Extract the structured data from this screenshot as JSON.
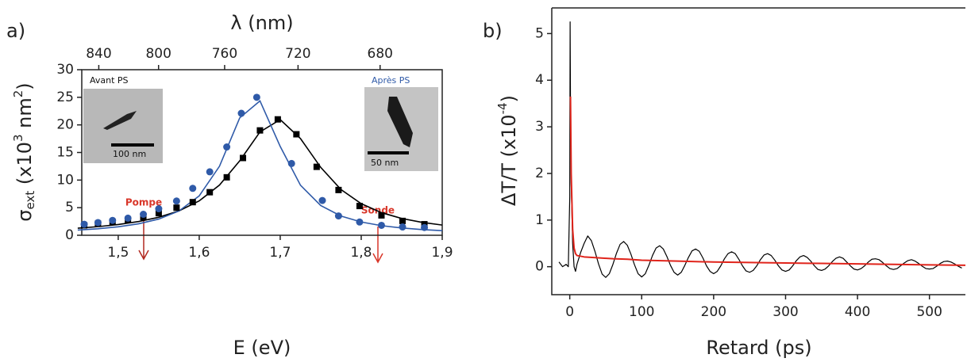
{
  "chart_data": [
    {
      "type": "scatter",
      "panel_label": "a)",
      "xlabel": "E (eV)",
      "x2label": "λ (nm)",
      "ylabel": [
        "σ",
        "ext",
        " (x10",
        "3",
        " nm",
        "2",
        ")"
      ],
      "xlim": [
        1.455,
        1.9
      ],
      "ylim": [
        0,
        30
      ],
      "xticks": [
        {
          "value": 1.5,
          "label": "1,5"
        },
        {
          "value": 1.6,
          "label": "1,6"
        },
        {
          "value": 1.7,
          "label": "1,7"
        },
        {
          "value": 1.8,
          "label": "1,8"
        },
        {
          "value": 1.9,
          "label": "1,9"
        }
      ],
      "x2ticks": [
        840,
        800,
        760,
        720,
        680
      ],
      "yticks": [
        0,
        5,
        10,
        15,
        20,
        25,
        30
      ],
      "series": [
        {
          "name": "Avant PS",
          "color": "#000000",
          "marker": "square",
          "x": [
            1.458,
            1.475,
            1.493,
            1.512,
            1.531,
            1.55,
            1.572,
            1.592,
            1.613,
            1.634,
            1.654,
            1.675,
            1.697,
            1.72,
            1.745,
            1.772,
            1.798,
            1.825,
            1.851,
            1.878
          ],
          "values": [
            1.8,
            2.1,
            2.4,
            2.8,
            3.3,
            4.0,
            5.0,
            6.0,
            7.8,
            10.5,
            14.0,
            19.0,
            21.0,
            18.3,
            12.4,
            8.2,
            5.3,
            3.6,
            2.6,
            2.0
          ]
        },
        {
          "name": "Après PS",
          "color": "#2f5aa8",
          "marker": "circle",
          "x": [
            1.458,
            1.475,
            1.493,
            1.512,
            1.531,
            1.55,
            1.572,
            1.592,
            1.613,
            1.634,
            1.652,
            1.671,
            1.714,
            1.752,
            1.772,
            1.798,
            1.825,
            1.851,
            1.878
          ],
          "values": [
            2.0,
            2.3,
            2.7,
            3.1,
            3.8,
            4.8,
            6.2,
            8.5,
            11.5,
            16.0,
            22.1,
            25.0,
            13.0,
            6.3,
            3.5,
            2.4,
            1.8,
            1.5,
            1.4
          ]
        }
      ],
      "fit_x": [
        1.45,
        1.475,
        1.5,
        1.525,
        1.55,
        1.575,
        1.6,
        1.625,
        1.65,
        1.675,
        1.7,
        1.725,
        1.75,
        1.775,
        1.8,
        1.825,
        1.85,
        1.875,
        1.9
      ],
      "fits": [
        {
          "color": "#000000",
          "values": [
            1.28,
            1.56,
            1.95,
            2.49,
            3.26,
            4.42,
            6.23,
            9.09,
            13.49,
            18.72,
            20.96,
            17.53,
            12.3,
            8.29,
            5.72,
            4.1,
            3.04,
            2.34,
            1.85
          ]
        },
        {
          "color": "#2f5aa8",
          "values": [
            0.94,
            1.18,
            1.54,
            2.07,
            2.93,
            4.4,
            7.14,
            12.5,
            21.27,
            24.35,
            16.09,
            9.07,
            5.39,
            3.48,
            2.4,
            1.74,
            1.32,
            1.03,
            0.83
          ]
        }
      ],
      "annotations": {
        "pump": "Pompe",
        "probe": "Sonde",
        "scale_before": "100 nm",
        "scale_after": "50 nm"
      }
    },
    {
      "type": "line",
      "panel_label": "b)",
      "xlabel": "Retard (ps)",
      "ylabel": [
        "ΔT/T (x10",
        "-4",
        ")"
      ],
      "xlim": [
        -25,
        550
      ],
      "ylim": [
        -0.6,
        5.55
      ],
      "xticks": [
        0,
        100,
        200,
        300,
        400,
        500
      ],
      "yticks": [
        0,
        1,
        2,
        3,
        4,
        5
      ],
      "series": [
        {
          "color": "#000000",
          "x": [
            -15,
            -10,
            -5,
            -2,
            0,
            0.5,
            1,
            2,
            4,
            6,
            8,
            10,
            15,
            20,
            25,
            30,
            35,
            40,
            45,
            50,
            55,
            60,
            65,
            70,
            75,
            80,
            85,
            90,
            95,
            100,
            105,
            110,
            115,
            120,
            125,
            130,
            135,
            140,
            145,
            150,
            155,
            160,
            165,
            170,
            175,
            180,
            185,
            190,
            195,
            200,
            205,
            210,
            215,
            220,
            225,
            230,
            235,
            240,
            245,
            250,
            255,
            260,
            265,
            270,
            275,
            280,
            285,
            290,
            295,
            300,
            305,
            310,
            315,
            320,
            325,
            330,
            335,
            340,
            345,
            350,
            355,
            360,
            365,
            370,
            375,
            380,
            385,
            390,
            395,
            400,
            405,
            410,
            415,
            420,
            425,
            430,
            435,
            440,
            445,
            450,
            455,
            460,
            465,
            470,
            475,
            480,
            485,
            490,
            495,
            500,
            505,
            510,
            515,
            520,
            525,
            530,
            535,
            540,
            545
          ],
          "values": [
            0.1,
            0.0,
            0.05,
            0.0,
            1.5,
            5.25,
            3.5,
            1.8,
            0.5,
            0.0,
            -0.1,
            0.05,
            0.3,
            0.5,
            0.66,
            0.56,
            0.33,
            0.06,
            -0.16,
            -0.23,
            -0.15,
            0.05,
            0.29,
            0.48,
            0.54,
            0.46,
            0.27,
            0.04,
            -0.15,
            -0.22,
            -0.15,
            0.03,
            0.24,
            0.4,
            0.45,
            0.38,
            0.22,
            0.03,
            -0.12,
            -0.18,
            -0.12,
            0.03,
            0.2,
            0.34,
            0.38,
            0.33,
            0.19,
            0.02,
            -0.1,
            -0.15,
            -0.1,
            0.02,
            0.17,
            0.28,
            0.32,
            0.28,
            0.16,
            0.02,
            -0.09,
            -0.12,
            -0.08,
            0.02,
            0.15,
            0.25,
            0.28,
            0.24,
            0.14,
            0.02,
            -0.07,
            -0.1,
            -0.07,
            0.02,
            0.13,
            0.21,
            0.24,
            0.2,
            0.12,
            0.02,
            -0.06,
            -0.08,
            -0.05,
            0.02,
            0.11,
            0.18,
            0.21,
            0.18,
            0.1,
            0.02,
            -0.05,
            -0.07,
            -0.04,
            0.02,
            0.1,
            0.16,
            0.17,
            0.15,
            0.09,
            0.02,
            -0.04,
            -0.06,
            -0.04,
            0.02,
            0.08,
            0.13,
            0.15,
            0.12,
            0.07,
            0.01,
            -0.04,
            -0.05,
            -0.04,
            0.01,
            0.07,
            0.11,
            0.12,
            0.1,
            0.06,
            0.01,
            -0.03
          ]
        },
        {
          "color": "#e0241b",
          "x": [
            1,
            2,
            4,
            6,
            8,
            10,
            20,
            40,
            60,
            80,
            100,
            150,
            200,
            250,
            300,
            350,
            400,
            450,
            500,
            550
          ],
          "values": [
            3.65,
            2.0,
            0.8,
            0.4,
            0.28,
            0.24,
            0.21,
            0.19,
            0.17,
            0.16,
            0.14,
            0.12,
            0.1,
            0.09,
            0.08,
            0.07,
            0.06,
            0.05,
            0.04,
            0.03
          ]
        }
      ]
    }
  ]
}
